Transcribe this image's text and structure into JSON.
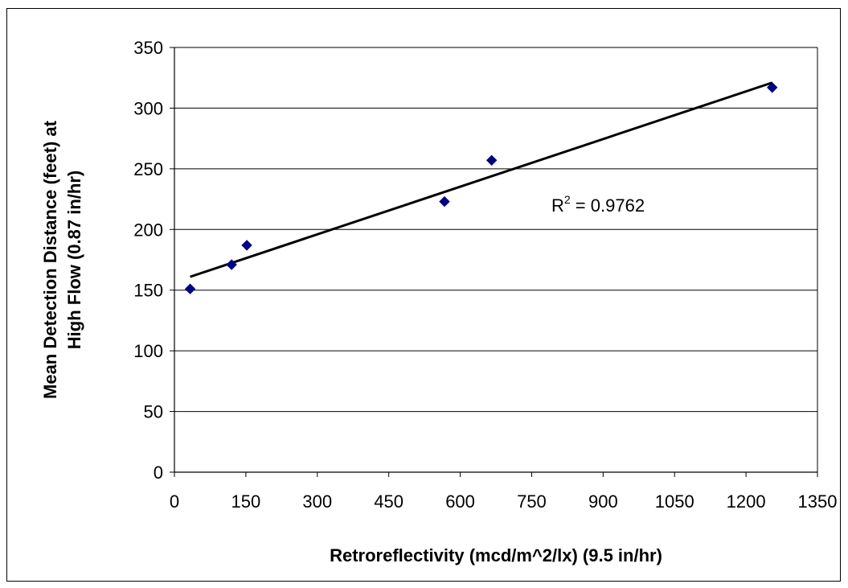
{
  "chart_data": {
    "type": "scatter",
    "title": "",
    "xlabel": "Retroreflectivity (mcd/m^2/lx) (9.5 in/hr)",
    "ylabel_line1": "Mean Detection Distance (feet) at",
    "ylabel_line2": "High Flow (0.87 in/hr)",
    "xlim": [
      0,
      1350
    ],
    "ylim": [
      0,
      350
    ],
    "xticks": [
      0,
      150,
      300,
      450,
      600,
      750,
      900,
      1050,
      1200,
      1350
    ],
    "yticks": [
      0,
      50,
      100,
      150,
      200,
      250,
      300,
      350
    ],
    "grid": "horizontal",
    "legend": "none",
    "series": [
      {
        "x": [
          33,
          120,
          152,
          567,
          666,
          1255
        ],
        "y": [
          151,
          171,
          187,
          223,
          257,
          317
        ],
        "marker": "diamond",
        "color": "#000080"
      }
    ],
    "trendline": {
      "type": "linear",
      "x_range": [
        33,
        1255
      ],
      "y_at_start": 161,
      "y_at_end": 321,
      "color": "#000000"
    },
    "annotation": {
      "prefix": "R",
      "superscript": "2",
      "suffix": " = 0.9762"
    }
  }
}
